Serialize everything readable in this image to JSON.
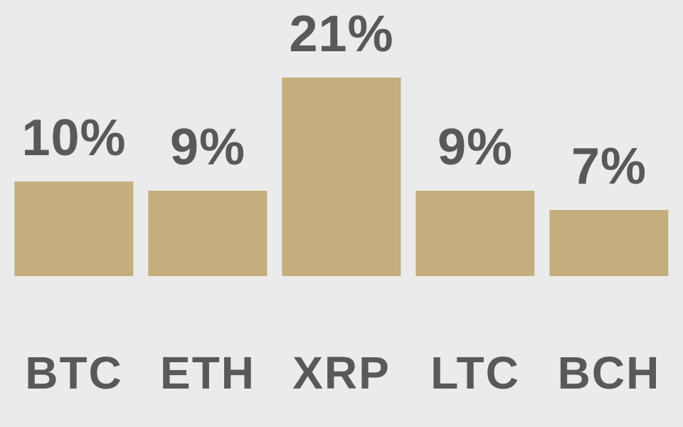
{
  "background_color": "#EBEBEB",
  "text_color": "#595959",
  "chart_data": {
    "type": "bar",
    "title": "",
    "xlabel": "",
    "ylabel": "",
    "unit": "%",
    "categories": [
      "BTC",
      "ETH",
      "XRP",
      "LTC",
      "BCH"
    ],
    "values": [
      10,
      9,
      21,
      9,
      7
    ],
    "value_labels": [
      "10%",
      "9%",
      "21%",
      "9%",
      "7%"
    ],
    "bar_color": "#C4AE7D",
    "ylim": [
      0,
      29
    ],
    "grid": false,
    "legend": false,
    "axis_lines": false
  }
}
